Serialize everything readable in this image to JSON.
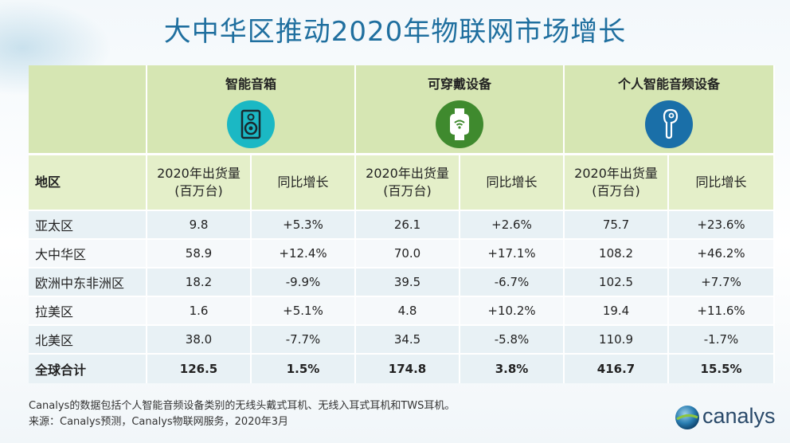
{
  "title": "大中华区推动2020年物联网市场增长",
  "table": {
    "region_header": "地区",
    "groups": [
      {
        "name": "智能音箱",
        "icon": "speaker-icon",
        "color": "#1bb8c4"
      },
      {
        "name": "可穿戴设备",
        "icon": "smartwatch-icon",
        "color": "#3f8a2e"
      },
      {
        "name": "个人智能音频设备",
        "icon": "earbud-icon",
        "color": "#1a6fa8"
      }
    ],
    "shipments_label_line1": "2020年出货量",
    "shipments_label_line2": "(百万台)",
    "growth_label": "同比增长",
    "rows": [
      {
        "region": "亚太区",
        "values": [
          "9.8",
          "+5.3%",
          "26.1",
          "+2.6%",
          "75.7",
          "+23.6%"
        ]
      },
      {
        "region": "大中华区",
        "values": [
          "58.9",
          "+12.4%",
          "70.0",
          "+17.1%",
          "108.2",
          "+46.2%"
        ]
      },
      {
        "region": "欧洲中东非洲区",
        "values": [
          "18.2",
          "-9.9%",
          "39.5",
          "-6.7%",
          "102.5",
          "+7.7%"
        ]
      },
      {
        "region": "拉美区",
        "values": [
          "1.6",
          "+5.1%",
          "4.8",
          "+10.2%",
          "19.4",
          "+11.6%"
        ]
      },
      {
        "region": "北美区",
        "values": [
          "38.0",
          "-7.7%",
          "34.5",
          "-5.8%",
          "110.9",
          "-1.7%"
        ]
      }
    ],
    "total": {
      "region": "全球合计",
      "values": [
        "126.5",
        "1.5%",
        "174.8",
        "3.8%",
        "416.7",
        "15.5%"
      ]
    }
  },
  "chart_data": {
    "type": "table",
    "title": "大中华区推动2020年物联网市场增长",
    "columns": [
      "地区",
      "智能音箱 2020年出货量(百万台)",
      "智能音箱 同比增长",
      "可穿戴设备 2020年出货量(百万台)",
      "可穿戴设备 同比增长",
      "个人智能音频设备 2020年出货量(百万台)",
      "个人智能音频设备 同比增长"
    ],
    "rows": [
      [
        "亚太区",
        9.8,
        "+5.3%",
        26.1,
        "+2.6%",
        75.7,
        "+23.6%"
      ],
      [
        "大中华区",
        58.9,
        "+12.4%",
        70.0,
        "+17.1%",
        108.2,
        "+46.2%"
      ],
      [
        "欧洲中东非洲区",
        18.2,
        "-9.9%",
        39.5,
        "-6.7%",
        102.5,
        "+7.7%"
      ],
      [
        "拉美区",
        1.6,
        "+5.1%",
        4.8,
        "+10.2%",
        19.4,
        "+11.6%"
      ],
      [
        "北美区",
        38.0,
        "-7.7%",
        34.5,
        "-5.8%",
        110.9,
        "-1.7%"
      ],
      [
        "全球合计",
        126.5,
        "1.5%",
        174.8,
        "3.8%",
        416.7,
        "15.5%"
      ]
    ]
  },
  "footnotes": {
    "line1": "Canalys的数据包括个人智能音频设备类别的无线头戴式耳机、无线入耳式耳机和TWS耳机。",
    "line2": "来源：Canalys预测，Canalys物联网服务，2020年3月"
  },
  "logo": {
    "text": "canalys"
  }
}
